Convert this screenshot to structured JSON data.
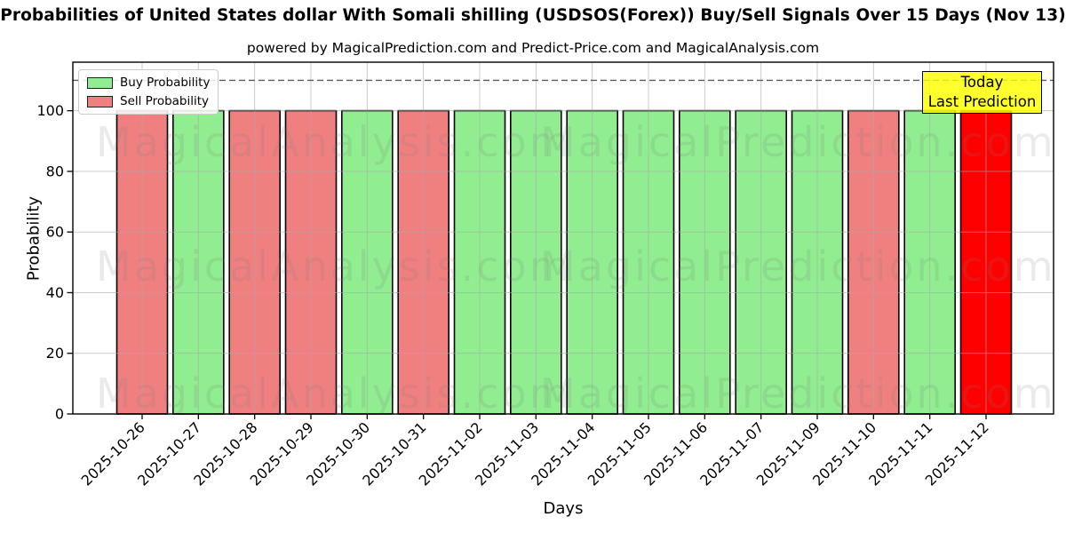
{
  "page": {
    "title": "Probabilities of United States dollar With Somali shilling (USDSOS(Forex)) Buy/Sell Signals Over 15 Days (Nov 13)",
    "subtitle": "powered by MagicalPrediction.com and Predict-Price.com and MagicalAnalysis.com"
  },
  "legend": {
    "items": [
      {
        "label": "Buy Probability",
        "color": "#90EE90"
      },
      {
        "label": "Sell Probability",
        "color": "#F08080"
      }
    ]
  },
  "annotation": {
    "line1": "Today",
    "line2": "Last Prediction",
    "bg_color": "#FFFF00"
  },
  "watermarks": {
    "left": "MagicalAnalysis.com",
    "right": "MagicalPrediction.com"
  },
  "colors": {
    "buy": "#90EE90",
    "sell": "#F08080",
    "today": "#FF0000",
    "bar_edge": "#000000",
    "grid": "#a8a8a8",
    "dashed_line": "#5a5a5a"
  },
  "chart_data": {
    "type": "bar",
    "title": "Probabilities of United States dollar With Somali shilling (USDSOS(Forex)) Buy/Sell Signals Over 15 Days (Nov 13)",
    "xlabel": "Days",
    "ylabel": "Probability",
    "categories": [
      "2025-10-26",
      "2025-10-27",
      "2025-10-28",
      "2025-10-29",
      "2025-10-30",
      "2025-10-31",
      "2025-11-02",
      "2025-11-03",
      "2025-11-04",
      "2025-11-05",
      "2025-11-06",
      "2025-11-07",
      "2025-11-09",
      "2025-11-10",
      "2025-11-11",
      "2025-11-12"
    ],
    "values": [
      100,
      100,
      100,
      100,
      100,
      100,
      100,
      100,
      100,
      100,
      100,
      100,
      100,
      100,
      100,
      100
    ],
    "signals": [
      "sell",
      "buy",
      "sell",
      "sell",
      "buy",
      "sell",
      "buy",
      "buy",
      "buy",
      "buy",
      "buy",
      "buy",
      "buy",
      "sell",
      "buy",
      "today"
    ],
    "ylim": [
      0,
      116
    ],
    "yticks": [
      0,
      20,
      40,
      60,
      80,
      100
    ],
    "dashed_line_y": 110,
    "grid": true,
    "legend_position": "upper left"
  }
}
